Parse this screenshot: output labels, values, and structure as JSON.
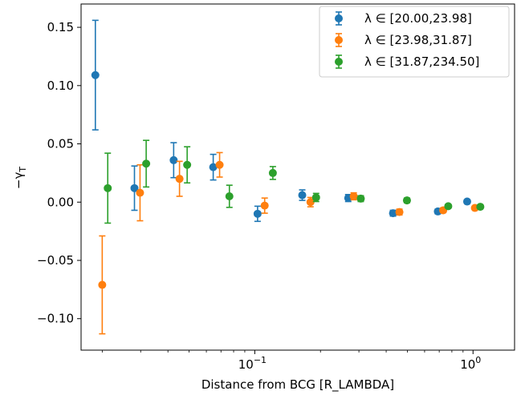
{
  "chart_data": {
    "type": "scatter",
    "xscale": "log",
    "xlim": [
      0.016,
      1.55
    ],
    "ylim": [
      -0.127,
      0.17
    ],
    "xlabel": "Distance from BCG [R_LAMBDA]",
    "ylabel": "−γ",
    "ylabel_sub": "T",
    "x_ticks": [
      {
        "value": 0.1,
        "base": "10",
        "exp": "−1"
      },
      {
        "value": 1.0,
        "base": "10",
        "exp": "0"
      }
    ],
    "y_ticks": [
      {
        "value": 0.15,
        "label": "0.15"
      },
      {
        "value": 0.1,
        "label": "0.10"
      },
      {
        "value": 0.05,
        "label": "0.05"
      },
      {
        "value": 0.0,
        "label": "0.00"
      },
      {
        "value": -0.05,
        "label": "−0.05"
      },
      {
        "value": -0.1,
        "label": "−0.10"
      }
    ],
    "grid": false,
    "legend_position": "top-right",
    "series": [
      {
        "name": "λ ∈ [20.00,23.98]",
        "color": "#1f77b4",
        "points": [
          {
            "x": 0.0186,
            "y": 0.109,
            "err": 0.047
          },
          {
            "x": 0.0281,
            "y": 0.012,
            "err": 0.019
          },
          {
            "x": 0.0425,
            "y": 0.036,
            "err": 0.015
          },
          {
            "x": 0.0645,
            "y": 0.03,
            "err": 0.011
          },
          {
            "x": 0.103,
            "y": -0.01,
            "err": 0.0065
          },
          {
            "x": 0.165,
            "y": 0.006,
            "err": 0.0045
          },
          {
            "x": 0.268,
            "y": 0.0035,
            "err": 0.003
          },
          {
            "x": 0.43,
            "y": -0.0095,
            "err": 0.0025
          },
          {
            "x": 0.69,
            "y": -0.008,
            "err": 0.002
          },
          {
            "x": 0.94,
            "y": 0.0005,
            "err": 0.0015
          }
        ]
      },
      {
        "name": "λ ∈ [23.98,31.87]",
        "color": "#ff7f0e",
        "points": [
          {
            "x": 0.02,
            "y": -0.071,
            "err": 0.042
          },
          {
            "x": 0.0298,
            "y": 0.008,
            "err": 0.024
          },
          {
            "x": 0.0452,
            "y": 0.02,
            "err": 0.015
          },
          {
            "x": 0.069,
            "y": 0.032,
            "err": 0.0105
          },
          {
            "x": 0.111,
            "y": -0.003,
            "err": 0.0065
          },
          {
            "x": 0.18,
            "y": 0.0,
            "err": 0.004
          },
          {
            "x": 0.284,
            "y": 0.005,
            "err": 0.003
          },
          {
            "x": 0.46,
            "y": -0.0085,
            "err": 0.0025
          },
          {
            "x": 0.73,
            "y": -0.007,
            "err": 0.002
          },
          {
            "x": 1.02,
            "y": -0.005,
            "err": 0.0015
          }
        ]
      },
      {
        "name": "λ ∈ [31.87,234.50]",
        "color": "#2ca02c",
        "points": [
          {
            "x": 0.0212,
            "y": 0.012,
            "err": 0.03
          },
          {
            "x": 0.0318,
            "y": 0.033,
            "err": 0.02
          },
          {
            "x": 0.049,
            "y": 0.032,
            "err": 0.0155
          },
          {
            "x": 0.0765,
            "y": 0.005,
            "err": 0.0095
          },
          {
            "x": 0.121,
            "y": 0.025,
            "err": 0.0055
          },
          {
            "x": 0.191,
            "y": 0.004,
            "err": 0.0035
          },
          {
            "x": 0.306,
            "y": 0.003,
            "err": 0.0025
          },
          {
            "x": 0.498,
            "y": 0.0015,
            "err": 0.002
          },
          {
            "x": 0.77,
            "y": -0.0035,
            "err": 0.0015
          },
          {
            "x": 1.08,
            "y": -0.004,
            "err": 0.0015
          }
        ]
      }
    ]
  }
}
